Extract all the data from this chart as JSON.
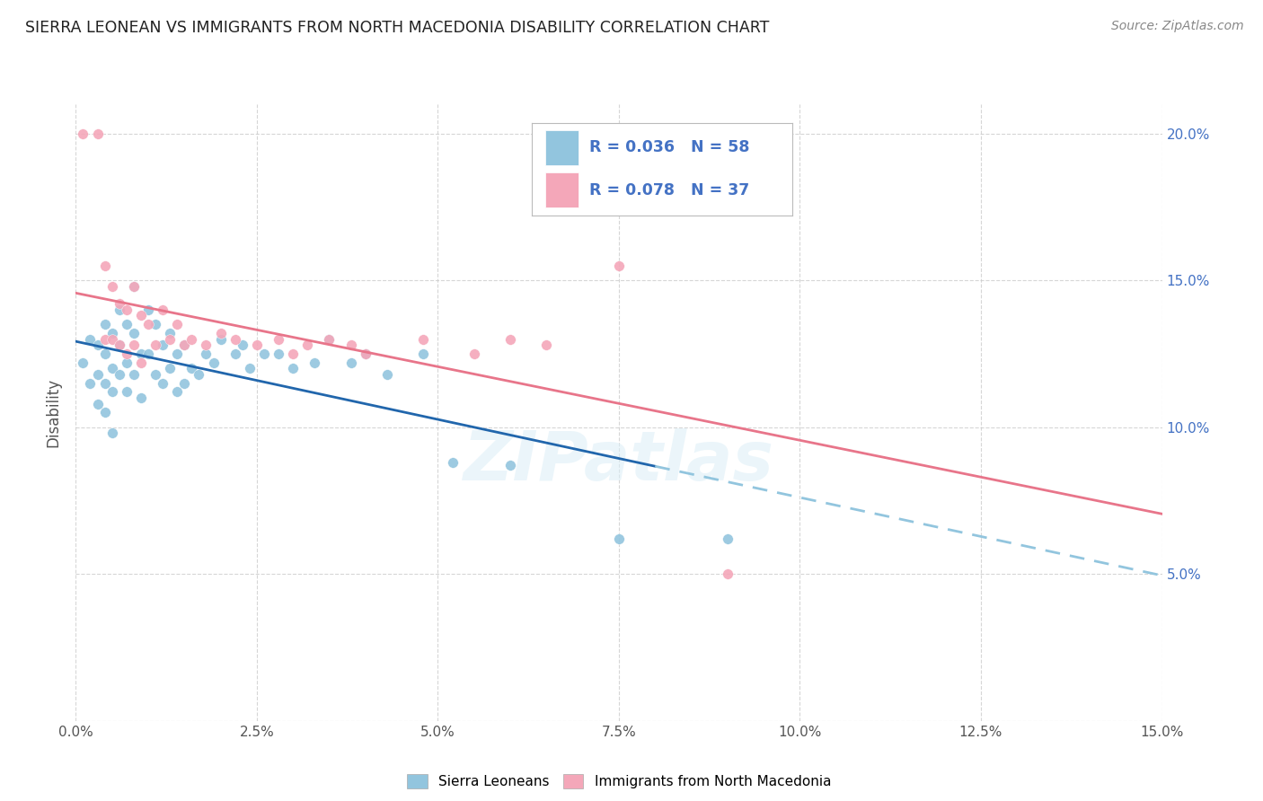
{
  "title": "SIERRA LEONEAN VS IMMIGRANTS FROM NORTH MACEDONIA DISABILITY CORRELATION CHART",
  "source": "Source: ZipAtlas.com",
  "ylabel_label": "Disability",
  "xlim": [
    0.0,
    0.15
  ],
  "ylim": [
    0.0,
    0.21
  ],
  "blue_R": 0.036,
  "blue_N": 58,
  "pink_R": 0.078,
  "pink_N": 37,
  "blue_color": "#92c5de",
  "pink_color": "#f4a7b9",
  "blue_line_color": "#2166ac",
  "pink_line_color": "#e8758a",
  "blue_dash_color": "#92c5de",
  "watermark": "ZIPatlas",
  "blue_scatter_x": [
    0.001,
    0.002,
    0.002,
    0.003,
    0.003,
    0.003,
    0.004,
    0.004,
    0.004,
    0.004,
    0.005,
    0.005,
    0.005,
    0.005,
    0.006,
    0.006,
    0.006,
    0.007,
    0.007,
    0.007,
    0.008,
    0.008,
    0.008,
    0.009,
    0.009,
    0.01,
    0.01,
    0.011,
    0.011,
    0.012,
    0.012,
    0.013,
    0.013,
    0.014,
    0.014,
    0.015,
    0.015,
    0.016,
    0.017,
    0.018,
    0.019,
    0.02,
    0.022,
    0.023,
    0.024,
    0.026,
    0.028,
    0.03,
    0.033,
    0.035,
    0.038,
    0.04,
    0.043,
    0.048,
    0.052,
    0.06,
    0.075,
    0.09
  ],
  "blue_scatter_y": [
    0.122,
    0.13,
    0.115,
    0.128,
    0.118,
    0.108,
    0.135,
    0.125,
    0.115,
    0.105,
    0.132,
    0.12,
    0.112,
    0.098,
    0.14,
    0.128,
    0.118,
    0.135,
    0.122,
    0.112,
    0.148,
    0.132,
    0.118,
    0.125,
    0.11,
    0.14,
    0.125,
    0.135,
    0.118,
    0.128,
    0.115,
    0.132,
    0.12,
    0.125,
    0.112,
    0.128,
    0.115,
    0.12,
    0.118,
    0.125,
    0.122,
    0.13,
    0.125,
    0.128,
    0.12,
    0.125,
    0.125,
    0.12,
    0.122,
    0.13,
    0.122,
    0.125,
    0.118,
    0.125,
    0.088,
    0.087,
    0.062,
    0.062
  ],
  "pink_scatter_x": [
    0.001,
    0.003,
    0.004,
    0.004,
    0.005,
    0.005,
    0.006,
    0.006,
    0.007,
    0.007,
    0.008,
    0.008,
    0.009,
    0.009,
    0.01,
    0.011,
    0.012,
    0.013,
    0.014,
    0.015,
    0.016,
    0.018,
    0.02,
    0.022,
    0.025,
    0.028,
    0.03,
    0.032,
    0.035,
    0.038,
    0.04,
    0.048,
    0.055,
    0.06,
    0.065,
    0.075,
    0.09
  ],
  "pink_scatter_y": [
    0.2,
    0.2,
    0.155,
    0.13,
    0.148,
    0.13,
    0.142,
    0.128,
    0.14,
    0.125,
    0.148,
    0.128,
    0.138,
    0.122,
    0.135,
    0.128,
    0.14,
    0.13,
    0.135,
    0.128,
    0.13,
    0.128,
    0.132,
    0.13,
    0.128,
    0.13,
    0.125,
    0.128,
    0.13,
    0.128,
    0.125,
    0.13,
    0.125,
    0.13,
    0.128,
    0.155,
    0.05
  ]
}
